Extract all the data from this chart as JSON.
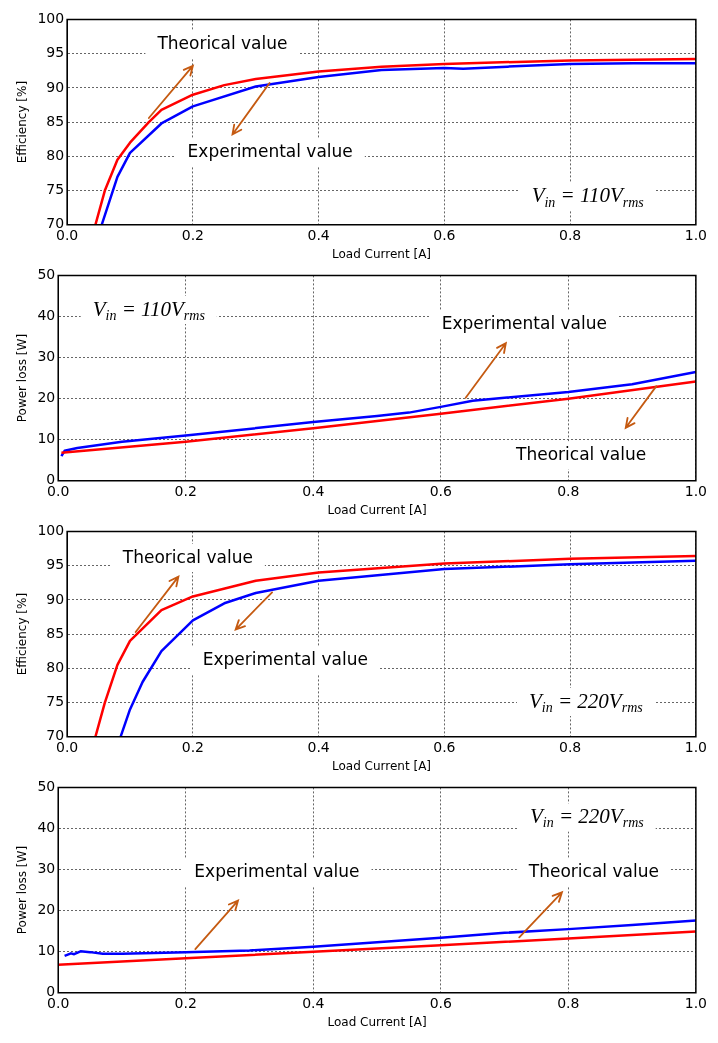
{
  "chart_data": [
    {
      "type": "line",
      "xlabel": "Load Current [A]",
      "ylabel": "Efficiency [%]",
      "xlim": [
        0,
        1
      ],
      "ylim": [
        70,
        100
      ],
      "xticks": [
        {
          "value": 0,
          "label": "0.0"
        },
        {
          "value": 0.2,
          "label": "0.2"
        },
        {
          "value": 0.4,
          "label": "0.4"
        },
        {
          "value": 0.6,
          "label": "0.6"
        },
        {
          "value": 0.8,
          "label": "0.8"
        },
        {
          "value": 1,
          "label": "1.0"
        }
      ],
      "yticks": [
        70,
        75,
        80,
        85,
        90,
        95,
        100
      ],
      "grid": true,
      "series": [
        {
          "color": "#ff0000",
          "x": [
            0.045,
            0.06,
            0.08,
            0.1,
            0.13,
            0.15,
            0.2,
            0.25,
            0.3,
            0.4,
            0.5,
            0.6,
            0.8,
            1.0
          ],
          "values": [
            70,
            75,
            79.5,
            82,
            85,
            86.8,
            89,
            90.4,
            91.3,
            92.4,
            93.1,
            93.5,
            94,
            94.2
          ]
        },
        {
          "color": "#0000ff",
          "x": [
            0.055,
            0.08,
            0.1,
            0.15,
            0.2,
            0.3,
            0.4,
            0.5,
            0.6,
            0.63,
            0.7,
            0.8,
            0.9,
            1.0
          ],
          "values": [
            70,
            77,
            80.5,
            84.8,
            87.3,
            90.2,
            91.6,
            92.6,
            92.9,
            92.8,
            93.1,
            93.5,
            93.6,
            93.6
          ]
        }
      ],
      "annotations": [
        {
          "text": "Theorical value",
          "x": 0.13,
          "y": 85.6
        },
        {
          "text": "Experimental value",
          "x": 0.322,
          "y": 90.7
        },
        "V$_{in}$ = 110V$_{rms}$"
      ]
    },
    {
      "type": "line",
      "xlabel": "Load Current [A]",
      "ylabel": "Power loss [W]",
      "xlim": [
        0,
        1
      ],
      "ylim": [
        0,
        50
      ],
      "xticks": [
        {
          "value": 0,
          "label": "0.0"
        },
        {
          "value": 0.2,
          "label": "0.2"
        },
        {
          "value": 0.4,
          "label": "0.4"
        },
        {
          "value": 0.6,
          "label": "0.6"
        },
        {
          "value": 0.8,
          "label": "0.8"
        },
        {
          "value": 1,
          "label": "1.0"
        }
      ],
      "yticks": [
        0,
        10,
        20,
        30,
        40,
        50
      ],
      "grid": true,
      "series": [
        {
          "color": "#ff0000",
          "x": [
            0.005,
            0.2,
            0.4,
            0.6,
            0.8,
            1.0
          ],
          "values": [
            6.8,
            9.5,
            12.8,
            16.3,
            20,
            24.2
          ]
        },
        {
          "color": "#0000ff",
          "x": [
            0.005,
            0.01,
            0.03,
            0.1,
            0.2,
            0.4,
            0.5,
            0.55,
            0.6,
            0.65,
            0.7,
            0.8,
            0.9,
            1.0
          ],
          "values": [
            6,
            7.3,
            8,
            9.5,
            11,
            14.3,
            15.8,
            16.6,
            18,
            19.5,
            20.2,
            21.6,
            23.5,
            26.5
          ]
        }
      ],
      "annotations": [
        "V$_{in}$ = 110V$_{rms}$",
        {
          "text": "Experimental value",
          "x": 0.639,
          "y": 20.2
        },
        {
          "text": "Theorical value",
          "x": 0.938,
          "y": 23.05
        }
      ]
    },
    {
      "type": "line",
      "xlabel": "Load Current [A]",
      "ylabel": "Efficiency [%]",
      "xlim": [
        0,
        1
      ],
      "ylim": [
        70,
        100
      ],
      "xticks": [
        {
          "value": 0,
          "label": "0.0"
        },
        {
          "value": 0.2,
          "label": "0.2"
        },
        {
          "value": 0.4,
          "label": "0.4"
        },
        {
          "value": 0.6,
          "label": "0.6"
        },
        {
          "value": 0.8,
          "label": "0.8"
        },
        {
          "value": 1,
          "label": "1.0"
        }
      ],
      "yticks": [
        70,
        75,
        80,
        85,
        90,
        95,
        100
      ],
      "grid": true,
      "series": [
        {
          "color": "#ff0000",
          "x": [
            0.045,
            0.06,
            0.08,
            0.1,
            0.15,
            0.2,
            0.3,
            0.4,
            0.6,
            0.8,
            1.0
          ],
          "values": [
            70,
            75,
            80.5,
            84,
            88.5,
            90.5,
            92.8,
            94,
            95.3,
            96,
            96.4
          ]
        },
        {
          "color": "#0000ff",
          "x": [
            0.085,
            0.1,
            0.12,
            0.15,
            0.2,
            0.25,
            0.3,
            0.4,
            0.6,
            0.8,
            1.0
          ],
          "values": [
            70,
            74,
            78,
            82.5,
            87,
            89.5,
            91,
            92.8,
            94.5,
            95.2,
            95.7
          ]
        }
      ],
      "annotations": [
        {
          "text": "Theorical value",
          "x": 0.109,
          "y": 85.3
        },
        {
          "text": "Experimental value",
          "x": 0.326,
          "y": 91.1
        },
        "V$_{in}$ = 220V$_{rms}$"
      ]
    },
    {
      "type": "line",
      "xlabel": "Load Current [A]",
      "ylabel": "Power loss [W]",
      "xlim": [
        0,
        1
      ],
      "ylim": [
        0,
        50
      ],
      "xticks": [
        {
          "value": 0,
          "label": "0.0"
        },
        {
          "value": 0.2,
          "label": "0.2"
        },
        {
          "value": 0.4,
          "label": "0.4"
        },
        {
          "value": 0.6,
          "label": "0.6"
        },
        {
          "value": 0.8,
          "label": "0.8"
        },
        {
          "value": 1,
          "label": "1.0"
        }
      ],
      "yticks": [
        0,
        10,
        20,
        30,
        40,
        50
      ],
      "grid": true,
      "series": [
        {
          "color": "#ff0000",
          "x": [
            0,
            0.2,
            0.4,
            0.6,
            0.8,
            1.0
          ],
          "values": [
            6.8,
            8.4,
            10,
            11.6,
            13.2,
            14.9
          ]
        },
        {
          "color": "#0000ff",
          "x": [
            0.01,
            0.02,
            0.025,
            0.035,
            0.05,
            0.07,
            0.1,
            0.2,
            0.3,
            0.4,
            0.5,
            0.6,
            0.7,
            0.8,
            0.9,
            1.0
          ],
          "values": [
            9,
            9.6,
            9.4,
            10.1,
            9.9,
            9.5,
            9.5,
            9.9,
            10.3,
            11.2,
            12.3,
            13.4,
            14.6,
            15.5,
            16.5,
            17.6
          ]
        }
      ],
      "annotations": [
        "V$_{in}$ = 220V$_{rms}$",
        {
          "text": "Experimental value",
          "x": 0.215,
          "y": 10.65
        },
        {
          "text": "Theorical value",
          "x": 0.723,
          "y": 13.5
        }
      ]
    }
  ]
}
